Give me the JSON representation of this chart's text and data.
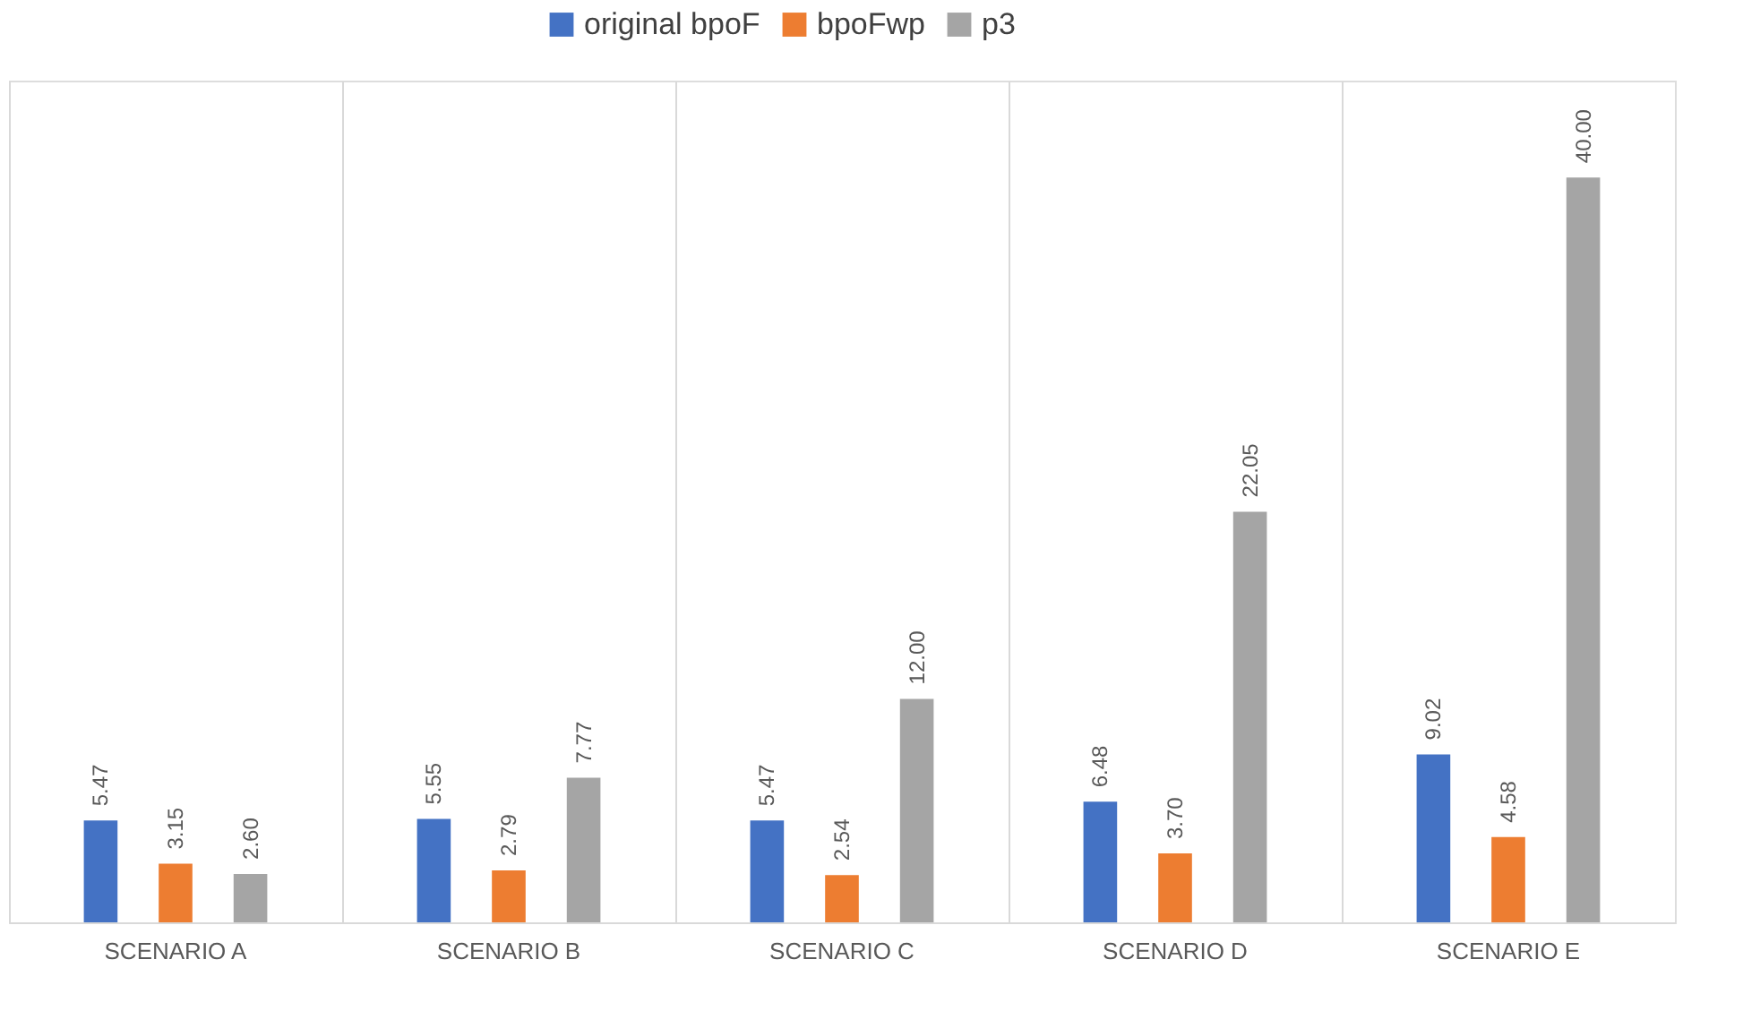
{
  "chart_data": {
    "type": "bar",
    "categories": [
      "SCENARIO A",
      "SCENARIO B",
      "SCENARIO C",
      "SCENARIO D",
      "SCENARIO E"
    ],
    "series": [
      {
        "name": "original bpoF",
        "color": "#4472c4",
        "values": [
          5.47,
          5.55,
          5.47,
          6.48,
          9.02
        ],
        "value_labels": [
          "5.47",
          "5.55",
          "5.47",
          "6.48",
          "9.02"
        ]
      },
      {
        "name": "bpoFwp",
        "color": "#ed7d31",
        "values": [
          3.15,
          2.79,
          2.54,
          3.7,
          4.58
        ],
        "value_labels": [
          "3.15",
          "2.79",
          "2.54",
          "3.70",
          "4.58"
        ]
      },
      {
        "name": "p3",
        "color": "#a5a5a5",
        "values": [
          2.6,
          7.77,
          12.0,
          22.05,
          40.0
        ],
        "value_labels": [
          "2.60",
          "7.77",
          "12.00",
          "22.05",
          "40.00"
        ]
      }
    ],
    "grid": "x",
    "legend": "top",
    "tick_labels": "x"
  }
}
